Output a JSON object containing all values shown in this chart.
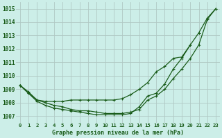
{
  "title": "Graphe pression niveau de la mer (hPa)",
  "bg_color": "#cceee8",
  "grid_color": "#b0c8c4",
  "line_color": "#1a5c1a",
  "ylim": [
    1006.5,
    1015.5
  ],
  "yticks": [
    1007,
    1008,
    1009,
    1010,
    1011,
    1012,
    1013,
    1014,
    1015
  ],
  "xlim": [
    -0.5,
    23.5
  ],
  "xticks": [
    0,
    1,
    2,
    3,
    4,
    5,
    6,
    7,
    8,
    9,
    10,
    11,
    12,
    13,
    14,
    15,
    16,
    17,
    18,
    19,
    20,
    21,
    22,
    23
  ],
  "series1": [
    1009.3,
    1008.7,
    1008.1,
    1007.8,
    1007.6,
    1007.5,
    1007.4,
    1007.3,
    1007.2,
    1007.1,
    1007.1,
    1007.1,
    1007.1,
    1007.2,
    1007.7,
    1008.5,
    1008.7,
    1009.4,
    1010.5,
    1011.3,
    1012.3,
    1013.2,
    1014.3,
    1015.0
  ],
  "series2": [
    1009.3,
    1008.7,
    1008.2,
    1008.1,
    1008.1,
    1008.1,
    1008.2,
    1008.2,
    1008.2,
    1008.2,
    1008.2,
    1008.2,
    1008.3,
    1008.6,
    1009.0,
    1009.5,
    1010.3,
    1010.7,
    1011.3,
    1011.4,
    1012.3,
    null,
    null,
    null
  ],
  "series3": [
    1009.3,
    1008.8,
    1008.2,
    1008.0,
    1007.8,
    1007.7,
    1007.5,
    1007.4,
    1007.4,
    1007.3,
    1007.2,
    1007.2,
    1007.2,
    1007.3,
    1007.5,
    1008.2,
    1008.5,
    1009.0,
    1009.8,
    1010.5,
    1011.3,
    1012.3,
    1014.2,
    1015.0
  ]
}
